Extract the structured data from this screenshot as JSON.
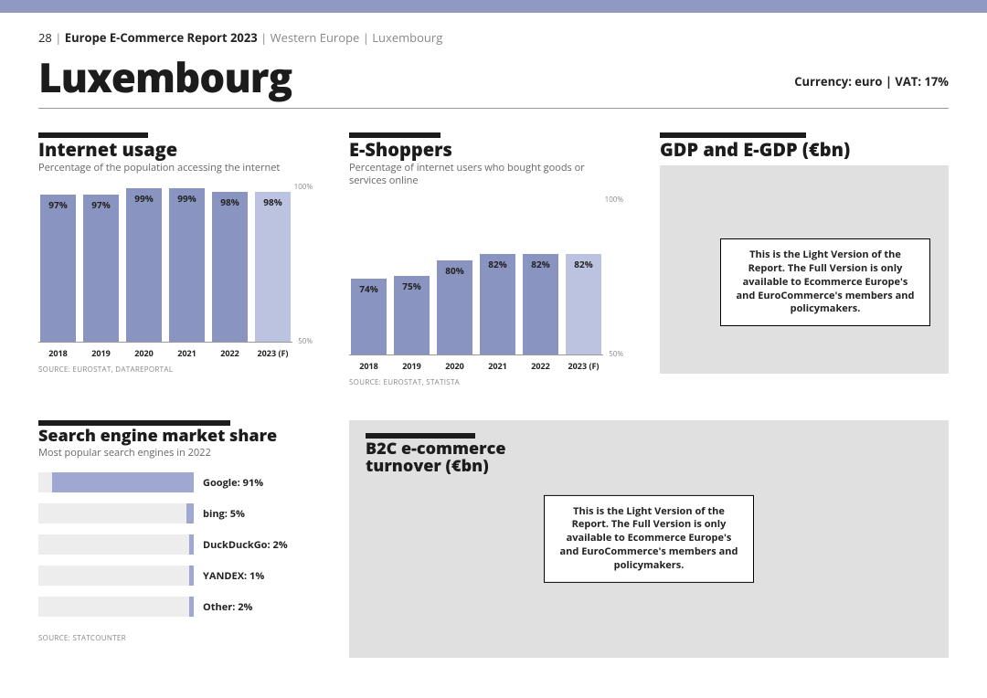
{
  "header": {
    "page_number": "28",
    "report_name": "Europe E-Commerce Report 2023",
    "region": "Western Europe",
    "country": "Luxembourg"
  },
  "title": "Luxembourg",
  "currency_line": "Currency: euro | VAT: 17%",
  "colors": {
    "bar_normal": "#8a94c0",
    "bar_forecast": "#bcc3e0",
    "hbar_fill": "#9ea8d0",
    "hbar_track": "#ededed",
    "locked_bg": "#e0e0e0",
    "topbar": "#9099c2"
  },
  "internet_usage": {
    "section_bar_width": 120,
    "title": "Internet usage",
    "subtitle": "Percentage of the population accessing the internet",
    "type": "bar",
    "ymin": 50,
    "ymax": 100,
    "ytick_top": "100%",
    "ytick_bottom": "50%",
    "categories": [
      "2018",
      "2019",
      "2020",
      "2021",
      "2022",
      "2023 (F)"
    ],
    "values": [
      97,
      97,
      99,
      99,
      98,
      98
    ],
    "value_labels": [
      "97%",
      "97%",
      "99%",
      "99%",
      "98%",
      "98%"
    ],
    "forecast_flags": [
      false,
      false,
      false,
      false,
      false,
      true
    ],
    "source": "SOURCE: EUROSTAT, DATAREPORTAL"
  },
  "eshoppers": {
    "section_bar_width": 100,
    "title": "E-Shoppers",
    "subtitle": "Percentage of internet users who bought goods or services online",
    "type": "bar",
    "ymin": 50,
    "ymax": 100,
    "ytick_top": "100%",
    "ytick_bottom": "50%",
    "categories": [
      "2018",
      "2019",
      "2020",
      "2021",
      "2022",
      "2023 (F)"
    ],
    "values": [
      74,
      75,
      80,
      82,
      82,
      82
    ],
    "value_labels": [
      "74%",
      "75%",
      "80%",
      "82%",
      "82%",
      "82%"
    ],
    "forecast_flags": [
      false,
      false,
      false,
      false,
      false,
      true
    ],
    "source": "SOURCE: EUROSTAT, STATISTA"
  },
  "gdp": {
    "section_bar_width": 160,
    "title": "GDP and E-GDP (€bn)",
    "locked_message": "This is the Light Version of the Report. The Full Version is only available to Ecommerce Europe's and EuroCommerce's members and policymakers."
  },
  "search": {
    "section_bar_width": 210,
    "title": "Search engine market share",
    "subtitle": "Most popular search engines in 2022",
    "type": "hbar",
    "max": 100,
    "items": [
      {
        "label": "Google: 91%",
        "value": 91
      },
      {
        "label": "bing: 5%",
        "value": 5
      },
      {
        "label": "DuckDuckGo: 2%",
        "value": 2
      },
      {
        "label": "YANDEX: 1%",
        "value": 1
      },
      {
        "label": "Other: 2%",
        "value": 2
      }
    ],
    "source": "SOURCE: STATCOUNTER"
  },
  "b2c": {
    "section_bar_width": 120,
    "title": "B2C e-commerce turnover (€bn)",
    "locked_message": "This is the Light Version of the Report. The Full Version is only available to Ecommerce Europe's and EuroCommerce's members and policymakers."
  }
}
